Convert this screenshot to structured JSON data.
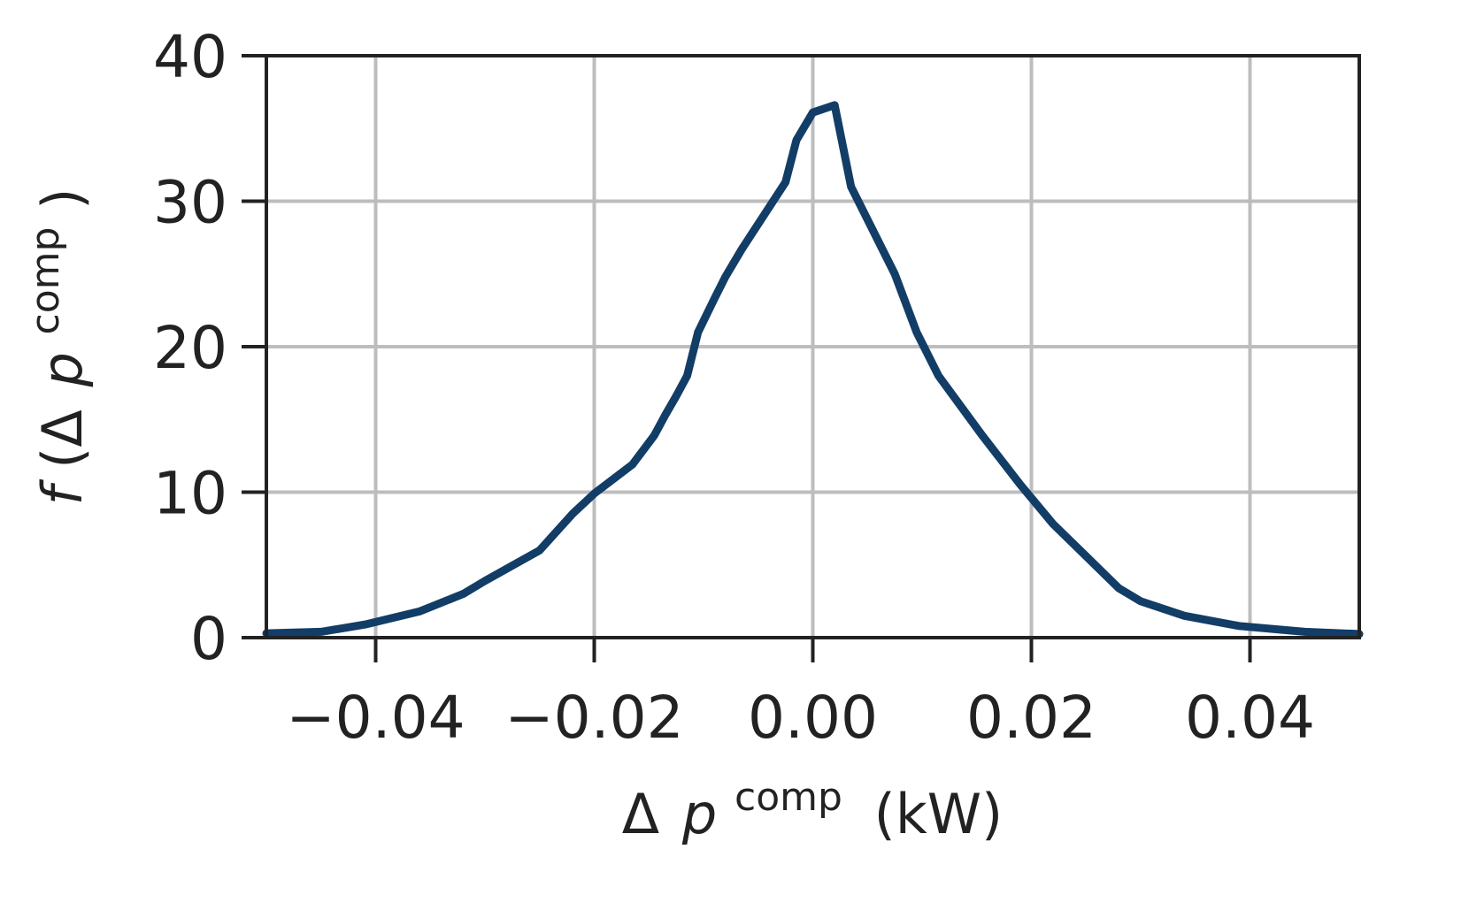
{
  "colors": {
    "series": "#123d66",
    "grid": "#bdbdbd",
    "axis": "#222222",
    "background": "#ffffff"
  },
  "chart_data": {
    "type": "line",
    "title": "",
    "xlabel_parts": {
      "delta": "Δ",
      "var": "p",
      "sup": "comp",
      "unit": "(kW)"
    },
    "ylabel_parts": {
      "fn": "f",
      "open": "(Δ",
      "var": "p",
      "sup": "comp",
      "close": ")"
    },
    "xlim": [
      -0.05,
      0.05
    ],
    "ylim": [
      0,
      40
    ],
    "xticks": [
      -0.04,
      -0.02,
      0.0,
      0.02,
      0.04
    ],
    "xtick_labels": [
      "−0.04",
      "−0.02",
      "0.00",
      "0.02",
      "0.04"
    ],
    "yticks": [
      0,
      10,
      20,
      30,
      40
    ],
    "ytick_labels": [
      "0",
      "10",
      "20",
      "30",
      "40"
    ],
    "grid": true,
    "legend": "none",
    "series": [
      {
        "x": [
          -0.05,
          -0.045,
          -0.041,
          -0.036,
          -0.032,
          -0.03,
          -0.025,
          -0.022,
          -0.02,
          -0.0165,
          -0.0145,
          -0.0135,
          -0.0125,
          -0.0115,
          -0.0105,
          -0.009,
          -0.008,
          -0.0065,
          -0.0045,
          -0.0025,
          -0.0015,
          0.0,
          0.002,
          0.0035,
          0.0075,
          0.0095,
          0.0115,
          0.0155,
          0.019,
          0.022,
          0.025,
          0.028,
          0.03,
          0.034,
          0.039,
          0.045,
          0.05
        ],
        "y": [
          0.3,
          0.4,
          0.9,
          1.8,
          3.0,
          3.9,
          6.0,
          8.5,
          9.9,
          11.9,
          13.9,
          15.3,
          16.6,
          18.0,
          21.0,
          23.3,
          24.8,
          26.7,
          29.0,
          31.3,
          34.2,
          36.1,
          36.6,
          31.0,
          25.0,
          21.0,
          18.0,
          13.9,
          10.5,
          7.8,
          5.6,
          3.4,
          2.5,
          1.5,
          0.8,
          0.4,
          0.25
        ]
      }
    ]
  }
}
